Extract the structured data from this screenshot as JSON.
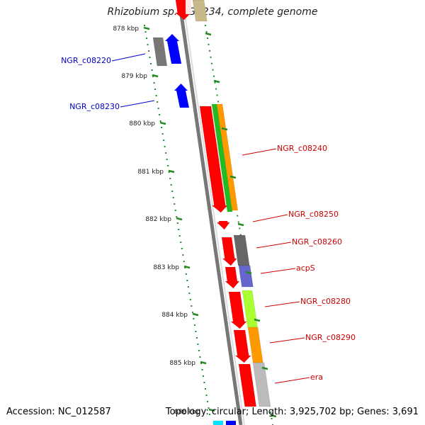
{
  "title": "Rhizobium sp. NGR234, complete genome",
  "footer": {
    "accession": "Accession: NC_012587",
    "summary": "Topology: circular; Length: 3,925,702 bp; Genes: 3,691"
  },
  "colors": {
    "backbone": "#888888",
    "tick": "#228b22",
    "label_blue": "#0000cc",
    "label_red": "#cc0000"
  },
  "ticks": [
    {
      "label": "878 kbp"
    },
    {
      "label": "879 kbp"
    },
    {
      "label": "880 kbp"
    },
    {
      "label": "881 kbp"
    },
    {
      "label": "882 kbp"
    },
    {
      "label": "883 kbp"
    },
    {
      "label": "884 kbp"
    },
    {
      "label": "885 kbp"
    },
    {
      "label": "886 kbp"
    }
  ],
  "gene_labels": [
    {
      "text": "NGR_c08220",
      "color": "#0000cc"
    },
    {
      "text": "NGR_c08230",
      "color": "#0000cc"
    },
    {
      "text": "NGR_c08240",
      "color": "#cc0000"
    },
    {
      "text": "NGR_c08250",
      "color": "#cc0000"
    },
    {
      "text": "NGR_c08260",
      "color": "#cc0000"
    },
    {
      "text": "acpS",
      "color": "#cc0000"
    },
    {
      "text": "NGR_c08280",
      "color": "#cc0000"
    },
    {
      "text": "NGR_c08290",
      "color": "#cc0000"
    },
    {
      "text": "era",
      "color": "#cc0000"
    }
  ]
}
